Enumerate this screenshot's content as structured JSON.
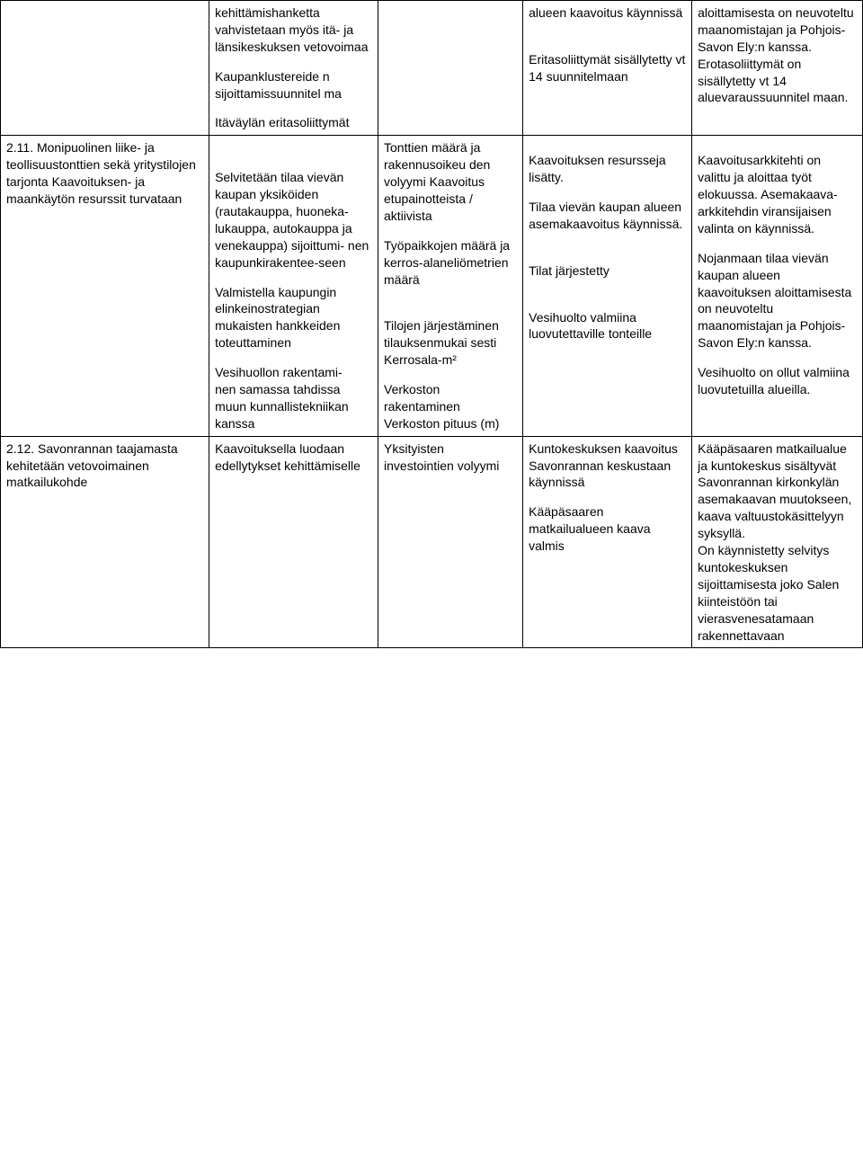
{
  "table": {
    "rows": [
      {
        "c1": "",
        "c2": "kehittämishanketta vahvistetaan myös itä- ja länsikeskuksen vetovoimaa\n\nKaupanklustereide n sijoittamissuunnitel ma\n\nItäväylän eritasoliittymät",
        "c3": "",
        "c4": "alueen kaavoitus käynnissä\n\n\nEritasoliittymät sisällytetty vt 14 suunnitelmaan",
        "c5": "aloittamisesta on neuvoteltu maanomistajan ja Pohjois-Savon Ely:n kanssa. Erotasoliittymät on sisällytetty vt 14 aluevaraussuunnitel maan."
      },
      {
        "c1": "2.11. Monipuolinen liike- ja teollisuustonttien sekä yritystilojen tarjonta Kaavoituksen- ja maankäytön resurssit turvataan",
        "c2": "\n\n\nSelvitetään tilaa vievän kaupan yksiköiden (rautakauppa, huoneka- lukauppa, autokauppa ja venekauppa) sijoittumi- nen kaupunkirakentee-seen\n\nValmistella kaupungin elinkeinostrategian mukaisten hankkeiden toteuttaminen\n\nVesihuollon rakentami-\nnen samassa tahdissa\nmuun kunnallistekniikan kanssa",
        "c3": "Tonttien määrä ja rakennusoikeu den volyymi Kaavoitus etupainotteista / aktiivista\n\nTyöpaikkojen määrä ja kerros-alaneliömetrien määrä\n\n\n\n\nTilojen järjestäminen tilauksenmukai sesti\nKerrosala-m²\n\nVerkoston rakentaminen Verkoston pituus (m)",
        "c4": "\n\nKaavoituksen resursseja lisätty.\n\nTilaa vievän kaupan alueen asemakaavoitus käynnissä.\n\n\n\n\nTilat järjestetty\n\n\n\n\nVesihuolto valmiina luovutettaville tonteille",
        "c5": "\n\nKaavoitusarkkitehti on valittu ja aloittaa työt elokuussa. Asemakaava-arkkitehdin viransijaisen valinta on käynnissä.\n\nNojanmaan tilaa vievän kaupan alueen kaavoituksen aloittamisesta on neuvoteltu maanomistajan ja Pohjois-Savon Ely:n kanssa.\n\n\n\nVesihuolto on ollut valmiina luovutetuilla alueilla."
      },
      {
        "c1": "2.12. Savonrannan taajamasta kehitetään vetovoimainen matkailukohde",
        "c2": "Kaavoituksella luodaan edellytykset kehittämiselle",
        "c3": "Yksityisten investointien volyymi",
        "c4": "Kuntokeskuksen kaavoitus Savonrannan keskustaan käynnissä\n\nKääpäsaaren matkailualueen kaava valmis",
        "c5": "Kääpäsaaren matkailualue ja kuntokeskus sisältyvät Savonrannan kirkonkylän asemakaavan muutokseen, kaava valtuustokäsittelyyn syksyllä.\nOn käynnistetty selvitys kuntokeskuksen sijoittamisesta joko Salen kiinteistöön tai vierasvenesatamaan rakennettavaan"
      }
    ]
  }
}
